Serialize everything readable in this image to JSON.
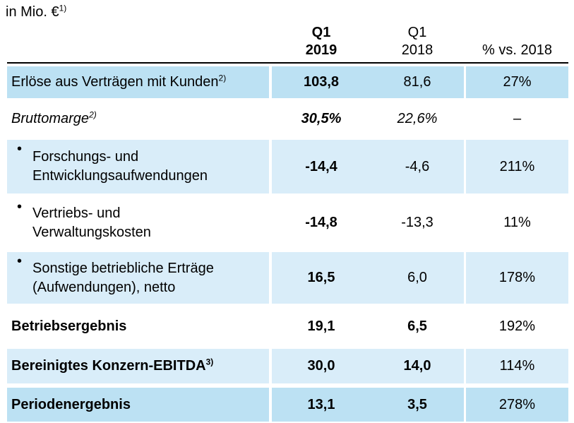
{
  "title": {
    "text": "in Mio. €",
    "footnote": "1)"
  },
  "header": {
    "col_2019_line1": "Q1",
    "col_2019_line2": "2019",
    "col_2018_line1": "Q1",
    "col_2018_line2": "2018",
    "col_pct": "% vs. 2018"
  },
  "colors": {
    "row_highlight_strong": "#bce1f3",
    "row_highlight_light": "#d9edf9",
    "header_rule": "#000000",
    "text": "#000000"
  },
  "rows": [
    {
      "label": "Erlöse aus Verträgen mit Kunden",
      "footnote": "2)",
      "q1_2019": "103,8",
      "q1_2018": "81,6",
      "pct_vs_2018": "27%",
      "shade": "strong",
      "bullet": false,
      "italic": false,
      "bold_label": false,
      "bold_2018": false
    },
    {
      "label": "Bruttomarge",
      "footnote": "2)",
      "q1_2019": "30,5%",
      "q1_2018": "22,6%",
      "pct_vs_2018": "–",
      "shade": "none",
      "bullet": false,
      "italic": true,
      "bold_label": false,
      "bold_2018": false
    },
    {
      "label": "Forschungs- und\nEntwicklungsaufwendungen",
      "footnote": "",
      "q1_2019": "-14,4",
      "q1_2018": "-4,6",
      "pct_vs_2018": "211%",
      "shade": "light",
      "bullet": true,
      "italic": false,
      "bold_label": false,
      "bold_2018": false
    },
    {
      "label": "Vertriebs- und\nVerwaltungskosten",
      "footnote": "",
      "q1_2019": "-14,8",
      "q1_2018": "-13,3",
      "pct_vs_2018": "11%",
      "shade": "none",
      "bullet": true,
      "italic": false,
      "bold_label": false,
      "bold_2018": false
    },
    {
      "label": "Sonstige betriebliche Erträge\n(Aufwendungen), netto",
      "footnote": "",
      "q1_2019": "16,5",
      "q1_2018": "6,0",
      "pct_vs_2018": "178%",
      "shade": "light",
      "bullet": true,
      "italic": false,
      "bold_label": false,
      "bold_2018": false
    },
    {
      "label": "Betriebsergebnis",
      "footnote": "",
      "q1_2019": "19,1",
      "q1_2018": "6,5",
      "pct_vs_2018": "192%",
      "shade": "none",
      "bullet": false,
      "italic": false,
      "bold_label": true,
      "bold_2018": true
    },
    {
      "label": "Bereinigtes Konzern-EBITDA",
      "footnote": "3)",
      "q1_2019": "30,0",
      "q1_2018": "14,0",
      "pct_vs_2018": "114%",
      "shade": "light",
      "bullet": false,
      "italic": false,
      "bold_label": true,
      "bold_2018": true
    },
    {
      "label": "Periodenergebnis",
      "footnote": "",
      "q1_2019": "13,1",
      "q1_2018": "3,5",
      "pct_vs_2018": "278%",
      "shade": "strong",
      "bullet": false,
      "italic": false,
      "bold_label": true,
      "bold_2018": true
    }
  ]
}
